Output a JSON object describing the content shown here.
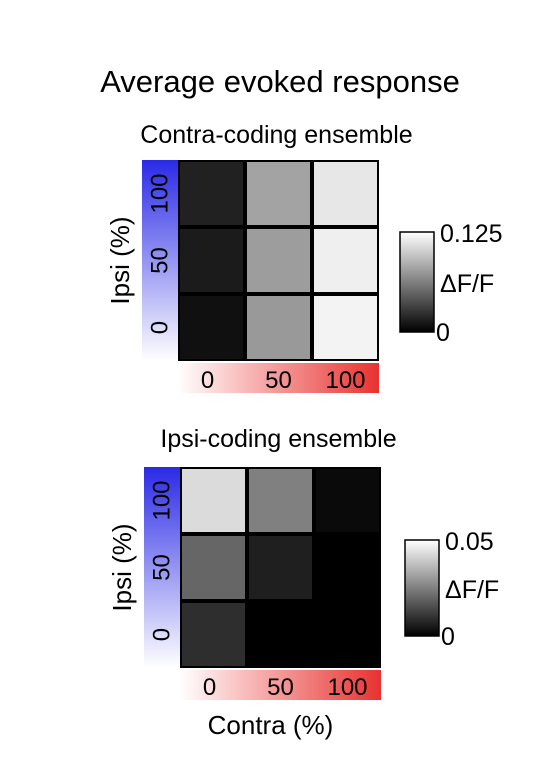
{
  "figure": {
    "title": "Average evoked response"
  },
  "chart_data": [
    {
      "type": "heatmap",
      "title": "Contra-coding ensemble",
      "x_categories": [
        "0",
        "50",
        "100"
      ],
      "y_categories": [
        "0",
        "50",
        "100"
      ],
      "xlabel": "",
      "ylabel": "Ipsi (%)",
      "values": [
        [
          0.008,
          0.075,
          0.119
        ],
        [
          0.013,
          0.077,
          0.117
        ],
        [
          0.016,
          0.08,
          0.113
        ]
      ],
      "values_note_rows": "rows ordered by y_categories from bottom (0) to top (100); columns by x_categories left to right",
      "colorbar": {
        "min": 0,
        "max": 0.125,
        "min_label": "0",
        "max_label": "0.125",
        "label": "ΔF/F"
      },
      "x_gradient_color": "#e8322f",
      "y_gradient_color": "#2a2ae6"
    },
    {
      "type": "heatmap",
      "title": "Ipsi-coding ensemble",
      "x_categories": [
        "0",
        "50",
        "100"
      ],
      "y_categories": [
        "0",
        "50",
        "100"
      ],
      "xlabel": "Contra (%)",
      "ylabel": "Ipsi (%)",
      "values": [
        [
          0.009,
          0.0,
          0.0
        ],
        [
          0.02,
          0.006,
          0.0
        ],
        [
          0.043,
          0.025,
          0.002
        ]
      ],
      "colorbar": {
        "min": 0,
        "max": 0.05,
        "min_label": "0",
        "max_label": "0.05",
        "label": "ΔF/F"
      },
      "x_gradient_color": "#e8322f",
      "y_gradient_color": "#2a2ae6"
    }
  ]
}
